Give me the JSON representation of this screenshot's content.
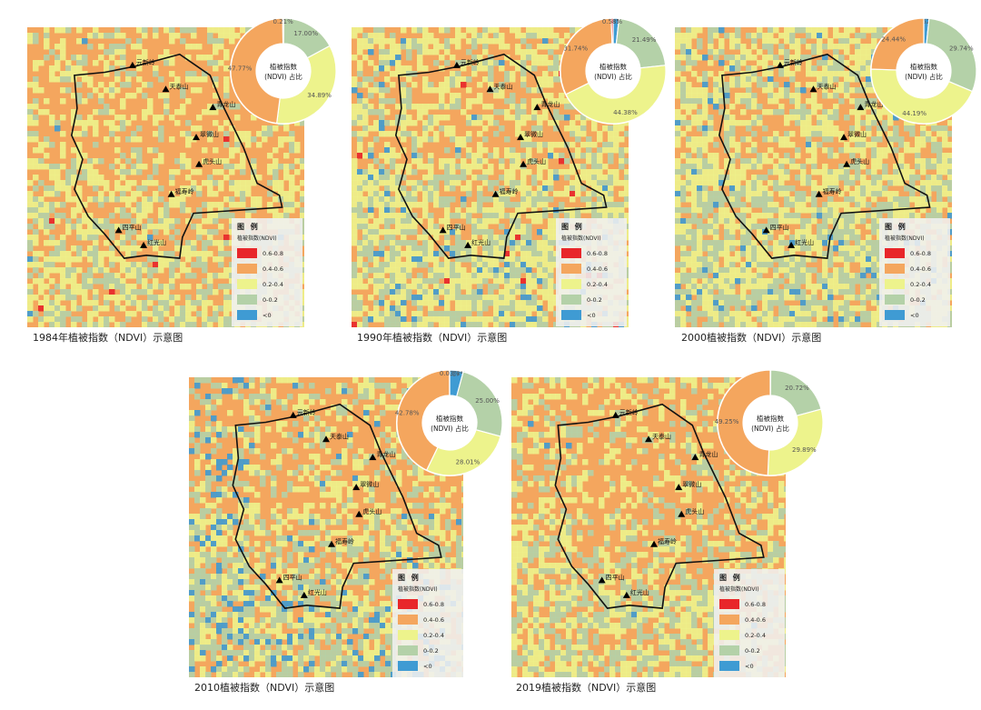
{
  "classes": [
    {
      "range": "0.6-0.8",
      "color": "#e8262a"
    },
    {
      "range": "0.4-0.6",
      "color": "#f4a65e"
    },
    {
      "range": "0.2-0.4",
      "color": "#edf38c"
    },
    {
      "range": "0-0.2",
      "color": "#b4d1a8"
    },
    {
      "range": "<0",
      "color": "#3f9bd3"
    }
  ],
  "legend": {
    "title": "图 例",
    "subtitle": "植被指数(NDVI)"
  },
  "donut_center": [
    "植被指数",
    "(NDVI)  占比"
  ],
  "panels": [
    {
      "caption": "1984年植被指数（NDVI）示意图",
      "peaks": [
        "元新岭",
        "天泰山",
        "青龙山",
        "翠微山",
        "虎头山",
        "福寿岭",
        "四平山",
        "红光山"
      ],
      "chart_data": {
        "type": "pie",
        "categories": [
          "0.6-0.8",
          "0.4-0.6",
          "0.2-0.4",
          "0-0.2",
          "<0"
        ],
        "values": [
          0.21,
          47.77,
          34.89,
          17.0,
          0.13
        ]
      }
    },
    {
      "caption": "1990年植被指数（NDVI）示意图",
      "peaks": [
        "元新岭",
        "天泰山",
        "青龙山",
        "翠微山",
        "虎头山",
        "福寿岭",
        "四平山",
        "红光山"
      ],
      "chart_data": {
        "type": "pie",
        "categories": [
          "0.6-0.8",
          "0.4-0.6",
          "0.2-0.4",
          "0-0.2",
          "<0"
        ],
        "values": [
          0.58,
          31.74,
          44.38,
          21.49,
          1.81
        ]
      }
    },
    {
      "caption": "2000植被指数（NDVI）示意图",
      "peaks": [
        "元新岭",
        "天泰山",
        "青龙山",
        "翠微山",
        "虎头山",
        "福寿岭",
        "四平山",
        "红光山"
      ],
      "chart_data": {
        "type": "pie",
        "categories": [
          "0.6-0.8",
          "0.4-0.6",
          "0.2-0.4",
          "0-0.2",
          "<0"
        ],
        "values": [
          0.0,
          24.44,
          44.19,
          29.74,
          1.62
        ]
      }
    },
    {
      "caption": "2010植被指数（NDVI）示意图",
      "peaks": [
        "元新岭",
        "天泰山",
        "青龙山",
        "翠微山",
        "虎头山",
        "福寿岭",
        "四平山",
        "红光山"
      ],
      "chart_data": {
        "type": "pie",
        "categories": [
          "0.6-0.8",
          "0.4-0.6",
          "0.2-0.4",
          "0-0.2",
          "<0"
        ],
        "values": [
          0.03,
          42.78,
          28.01,
          25.0,
          4.17
        ]
      }
    },
    {
      "caption": "2019植被指数（NDVI）示意图",
      "peaks": [
        "元新岭",
        "天泰山",
        "青龙山",
        "翠微山",
        "虎头山",
        "福寿岭",
        "四平山",
        "红光山"
      ],
      "chart_data": {
        "type": "pie",
        "categories": [
          "0.6-0.8",
          "0.4-0.6",
          "0.2-0.4",
          "0-0.2",
          "<0"
        ],
        "values": [
          0,
          49.25,
          29.89,
          20.72,
          0.14
        ]
      }
    }
  ]
}
